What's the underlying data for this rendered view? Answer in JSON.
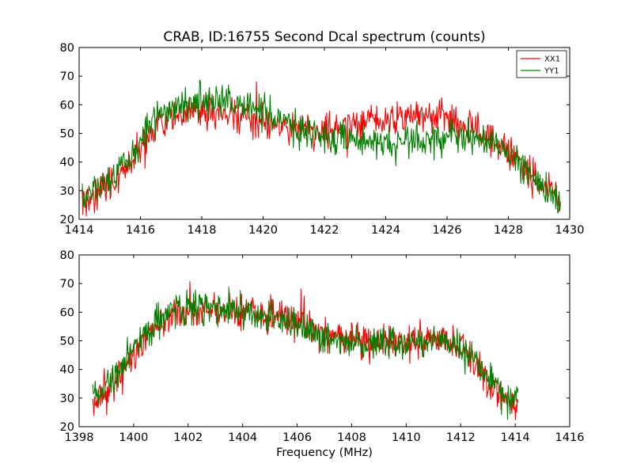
{
  "chart_data": [
    {
      "type": "line",
      "title": "CRAB, ID:16755 Second Dcal spectrum (counts)",
      "xlabel": "",
      "ylabel": "",
      "xlim": [
        1414,
        1430
      ],
      "ylim": [
        20,
        80
      ],
      "x_ticks": [
        "1414",
        "1416",
        "1418",
        "1420",
        "1422",
        "1424",
        "1426",
        "1428",
        "1430"
      ],
      "y_ticks": [
        "20",
        "30",
        "40",
        "50",
        "60",
        "70",
        "80"
      ],
      "x_range": [
        1414.1,
        1429.7
      ],
      "legend": {
        "placement": "top-right"
      },
      "series": [
        {
          "name": "XX1",
          "color": "#ff0000",
          "envelope_x": [
            1414.1,
            1415.0,
            1415.8,
            1416.5,
            1417.5,
            1418.5,
            1419.5,
            1420.5,
            1421.5,
            1422.5,
            1423.5,
            1424.5,
            1425.5,
            1426.5,
            1427.5,
            1428.3,
            1429.0,
            1429.7
          ],
          "envelope_y": [
            26,
            32,
            42,
            52,
            57,
            57,
            55,
            53,
            51,
            52,
            55,
            56,
            56,
            53,
            48,
            41,
            32,
            27
          ],
          "noise_amplitude": 4.2
        },
        {
          "name": "YY1",
          "color": "#008000",
          "envelope_x": [
            1414.1,
            1415.0,
            1415.8,
            1416.5,
            1417.5,
            1418.5,
            1419.5,
            1420.5,
            1421.5,
            1422.5,
            1423.5,
            1424.5,
            1425.5,
            1426.5,
            1427.5,
            1428.3,
            1429.0,
            1429.7
          ],
          "envelope_y": [
            28,
            34,
            44,
            56,
            61,
            62,
            60,
            55,
            50,
            48,
            47,
            47,
            48,
            49,
            47,
            40,
            32,
            28
          ],
          "noise_amplitude": 4.2
        }
      ]
    },
    {
      "type": "line",
      "title": "",
      "xlabel": "Frequency (MHz)",
      "ylabel": "",
      "xlim": [
        1398,
        1416
      ],
      "ylim": [
        20,
        80
      ],
      "x_ticks": [
        "1398",
        "1400",
        "1402",
        "1404",
        "1406",
        "1408",
        "1410",
        "1412",
        "1414",
        "1416"
      ],
      "y_ticks": [
        "20",
        "30",
        "40",
        "50",
        "60",
        "70",
        "80"
      ],
      "x_range": [
        1398.5,
        1414.1
      ],
      "series": [
        {
          "name": "XX1",
          "color": "#ff0000",
          "envelope_x": [
            1398.5,
            1399.3,
            1400.0,
            1400.8,
            1401.5,
            1402.5,
            1403.5,
            1404.5,
            1405.5,
            1406.5,
            1407.5,
            1408.5,
            1409.5,
            1410.5,
            1411.5,
            1412.3,
            1413.0,
            1413.5,
            1414.1
          ],
          "envelope_y": [
            28,
            35,
            46,
            55,
            60,
            61,
            60,
            59,
            58,
            54,
            51,
            50,
            49,
            50,
            50,
            46,
            36,
            30,
            28
          ],
          "noise_amplitude": 4.0
        },
        {
          "name": "YY1",
          "color": "#008000",
          "envelope_x": [
            1398.5,
            1399.3,
            1400.0,
            1400.8,
            1401.5,
            1402.5,
            1403.5,
            1404.5,
            1405.5,
            1406.5,
            1407.5,
            1408.5,
            1409.5,
            1410.5,
            1411.5,
            1412.3,
            1413.0,
            1413.5,
            1414.1
          ],
          "envelope_y": [
            30,
            37,
            48,
            56,
            61,
            62,
            61,
            59,
            57,
            53,
            50,
            49,
            49,
            50,
            50,
            46,
            37,
            31,
            29
          ],
          "noise_amplitude": 4.0
        }
      ]
    }
  ]
}
